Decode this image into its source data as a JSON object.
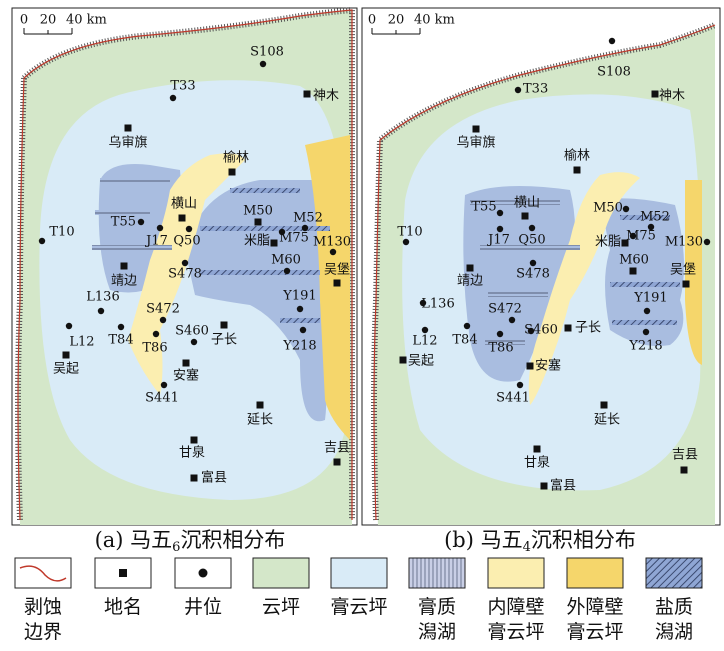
{
  "panels": [
    {
      "scale": [
        "0",
        "20",
        "40 km"
      ],
      "caption": {
        "main": "(a) 马五",
        "sub": "6",
        "rest": "沉积相分布"
      },
      "labels": [
        "S108",
        "T33",
        "神木",
        "乌审旗",
        "榆林",
        "横山",
        "T55",
        "J17",
        "Q50",
        "M50",
        "M52",
        "米脂",
        "M75",
        "M130",
        "T10",
        "靖边",
        "S478",
        "M60",
        "吴堡",
        "L136",
        "S472",
        "Y191",
        "L12",
        "T84",
        "T86",
        "S460",
        "子长",
        "Y218",
        "吴起",
        "安塞",
        "S441",
        "延长",
        "甘泉",
        "富县",
        "吉县"
      ]
    },
    {
      "scale": [
        "0",
        "20",
        "40 km"
      ],
      "caption": {
        "main": "(b) 马五",
        "sub": "4",
        "rest": "沉积相分布"
      },
      "labels": [
        "S108",
        "T33",
        "神木",
        "乌审旗",
        "榆林",
        "T55",
        "横山",
        "J17",
        "Q50",
        "M50",
        "M52",
        "米脂",
        "M75",
        "M130",
        "T10",
        "靖边",
        "S478",
        "M60",
        "吴堡",
        "L136",
        "S472",
        "Y191",
        "L12",
        "T84",
        "T86",
        "S460",
        "子长",
        "Y218",
        "吴起",
        "安塞",
        "S441",
        "延长",
        "甘泉",
        "富县",
        "吉县"
      ]
    }
  ],
  "legend": [
    {
      "lines": [
        "剥蚀",
        "边界"
      ]
    },
    {
      "lines": [
        "地名"
      ]
    },
    {
      "lines": [
        "井位"
      ]
    },
    {
      "lines": [
        "云坪"
      ]
    },
    {
      "lines": [
        "膏云坪"
      ]
    },
    {
      "lines": [
        "膏质",
        "潟湖"
      ]
    },
    {
      "lines": [
        "内障壁",
        "膏云坪"
      ]
    },
    {
      "lines": [
        "外障壁",
        "膏云坪"
      ]
    },
    {
      "lines": [
        "盐质",
        "潟湖"
      ]
    }
  ]
}
